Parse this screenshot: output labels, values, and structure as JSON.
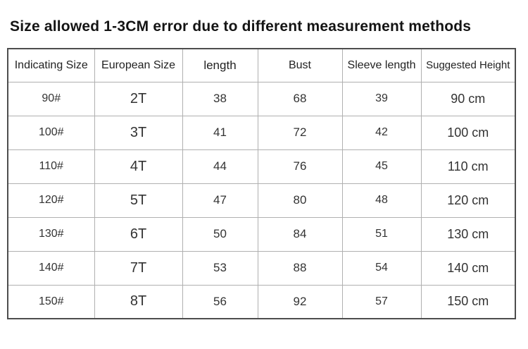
{
  "title": "Size allowed 1-3CM error due to different measurement methods",
  "table": {
    "columns": [
      "Indicating Size",
      "European Size",
      "length",
      "Bust",
      "Sleeve length",
      "Suggested Height"
    ],
    "rows": [
      [
        "90#",
        "2T",
        "38",
        "68",
        "39",
        "90 cm"
      ],
      [
        "100#",
        "3T",
        "41",
        "72",
        "42",
        "100 cm"
      ],
      [
        "110#",
        "4T",
        "44",
        "76",
        "45",
        "110 cm"
      ],
      [
        "120#",
        "5T",
        "47",
        "80",
        "48",
        "120 cm"
      ],
      [
        "130#",
        "6T",
        "50",
        "84",
        "51",
        "130 cm"
      ],
      [
        "140#",
        "7T",
        "53",
        "88",
        "54",
        "140 cm"
      ],
      [
        "150#",
        "8T",
        "56",
        "92",
        "57",
        "150 cm"
      ]
    ]
  },
  "colors": {
    "background": "#ffffff",
    "title_text": "#141414",
    "cell_text": "#333333",
    "outer_border": "#4d4d4d",
    "inner_border": "#b0b0b0"
  }
}
